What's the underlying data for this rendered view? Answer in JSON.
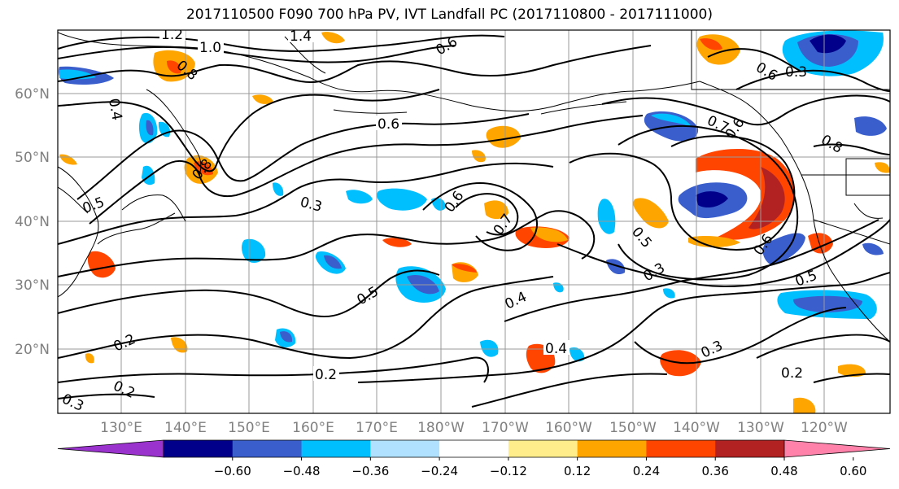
{
  "title": "2017110500 F090 700 hPa PV, IVT Landfall PC (2017110800 - 2017111000)",
  "lon_ticks": [
    "130°E",
    "140°E",
    "150°E",
    "160°E",
    "170°E",
    "180°W",
    "170°W",
    "160°W",
    "150°W",
    "140°W",
    "130°W",
    "120°W"
  ],
  "lat_ticks": [
    "60°N",
    "50°N",
    "40°N",
    "30°N",
    "20°N"
  ],
  "contour_labels": [
    "1.2",
    "1.0",
    "1.4",
    "0.8",
    "0.6",
    "0.4",
    "0.6",
    "0.3",
    "0.5",
    "0.8",
    "0.6",
    "0.7",
    "0.5",
    "0.3",
    "0.5",
    "0.2",
    "0.2",
    "0.2",
    "0.3",
    "0.4",
    "0.4",
    "0.3",
    "0.6",
    "0.5",
    "0.2",
    "0.7",
    "0.6",
    "0.8",
    "0.6",
    "0.3"
  ],
  "colorbar": {
    "tick_labels": [
      "−0.60",
      "−0.48",
      "−0.36",
      "−0.24",
      "−0.12",
      "0.12",
      "0.24",
      "0.36",
      "0.48",
      "0.60"
    ],
    "colors": [
      "#9a32cd",
      "#00008b",
      "#3a5fcd",
      "#00bfff",
      "#b0e2ff",
      "#ffffff",
      "#ffec8b",
      "#ffa500",
      "#ff4500",
      "#b22222",
      "#ff82ab"
    ]
  },
  "tick_color": "#808080"
}
